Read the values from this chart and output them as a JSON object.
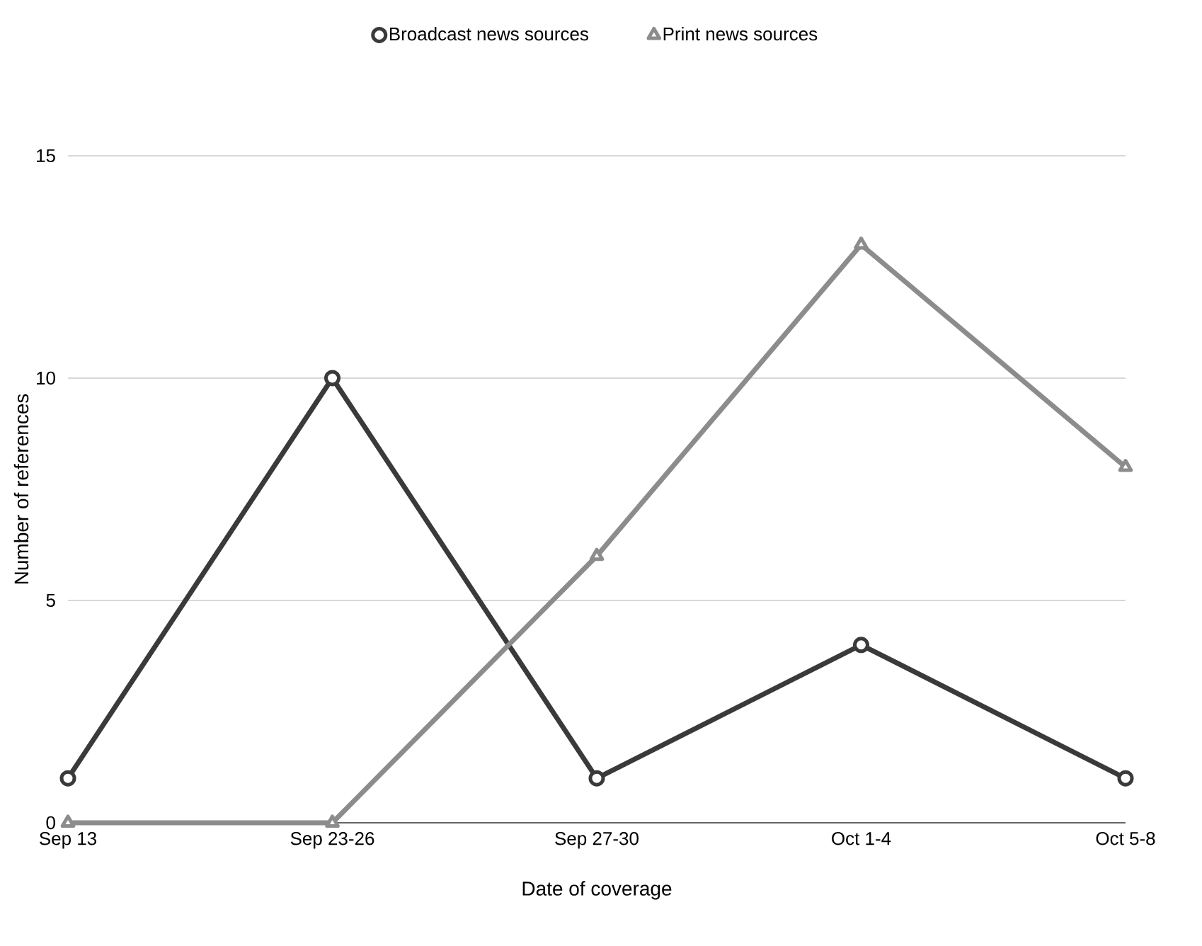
{
  "chart_data": {
    "type": "line",
    "xlabel": "Date of coverage",
    "ylabel": "Number of references",
    "categories": [
      "Sep 13",
      "Sep 23-26",
      "Sep 27-30",
      "Oct 1-4",
      "Oct 5-8"
    ],
    "series": [
      {
        "name": "Broadcast news sources",
        "color": "#3a3a3a",
        "marker": "circle",
        "values": [
          1,
          10,
          1,
          4,
          1
        ]
      },
      {
        "name": "Print news sources",
        "color": "#8c8c8c",
        "marker": "triangle",
        "values": [
          0,
          0,
          6,
          13,
          8
        ]
      }
    ],
    "ylim": [
      0,
      15
    ],
    "yticks": [
      0,
      5,
      10,
      15
    ],
    "grid": "y",
    "legend": "top",
    "line_style": "solid"
  }
}
